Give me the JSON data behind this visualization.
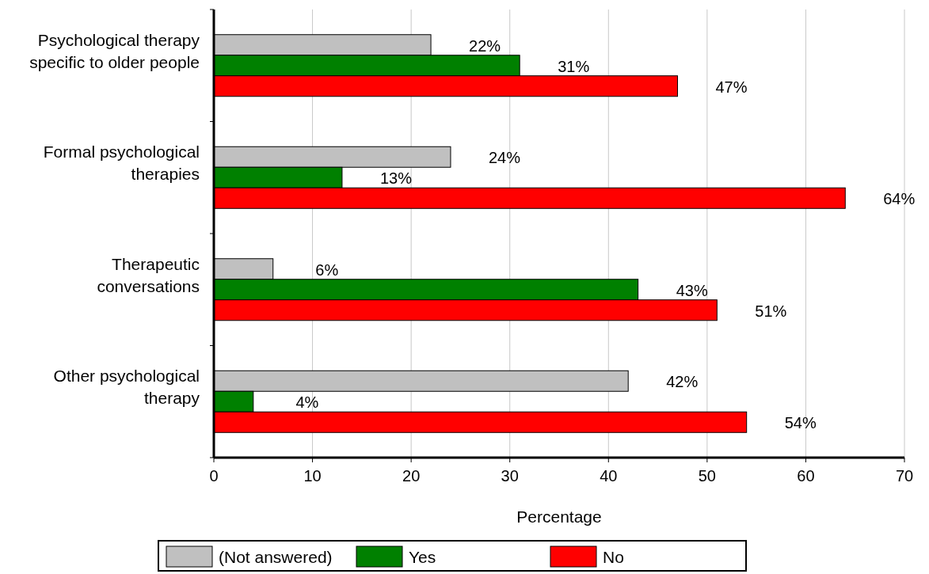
{
  "chart_data": {
    "type": "bar",
    "orientation": "horizontal",
    "xlabel": "Percentage",
    "categories": [
      "Psychological therapy\nspecific to older people",
      "Formal psychological\ntherapies",
      "Therapeutic\nconversations",
      "Other psychological\ntherapy"
    ],
    "series": [
      {
        "name": "(Not answered)",
        "color": "#c0c0c0",
        "values": [
          22,
          24,
          6,
          42
        ],
        "value_labels": [
          "22%",
          "24%",
          "6%",
          "42%"
        ]
      },
      {
        "name": "Yes",
        "color": "#008000",
        "values": [
          31,
          13,
          43,
          4
        ],
        "value_labels": [
          "31%",
          "13%",
          "43%",
          "4%"
        ]
      },
      {
        "name": "No",
        "color": "#ff0000",
        "values": [
          47,
          64,
          51,
          54
        ],
        "value_labels": [
          "47%",
          "64%",
          "51%",
          "54%"
        ]
      }
    ],
    "xlim": [
      0,
      70
    ],
    "xticks": [
      0,
      10,
      20,
      30,
      40,
      50,
      60,
      70
    ],
    "grid": "x",
    "legend": "bottom"
  }
}
